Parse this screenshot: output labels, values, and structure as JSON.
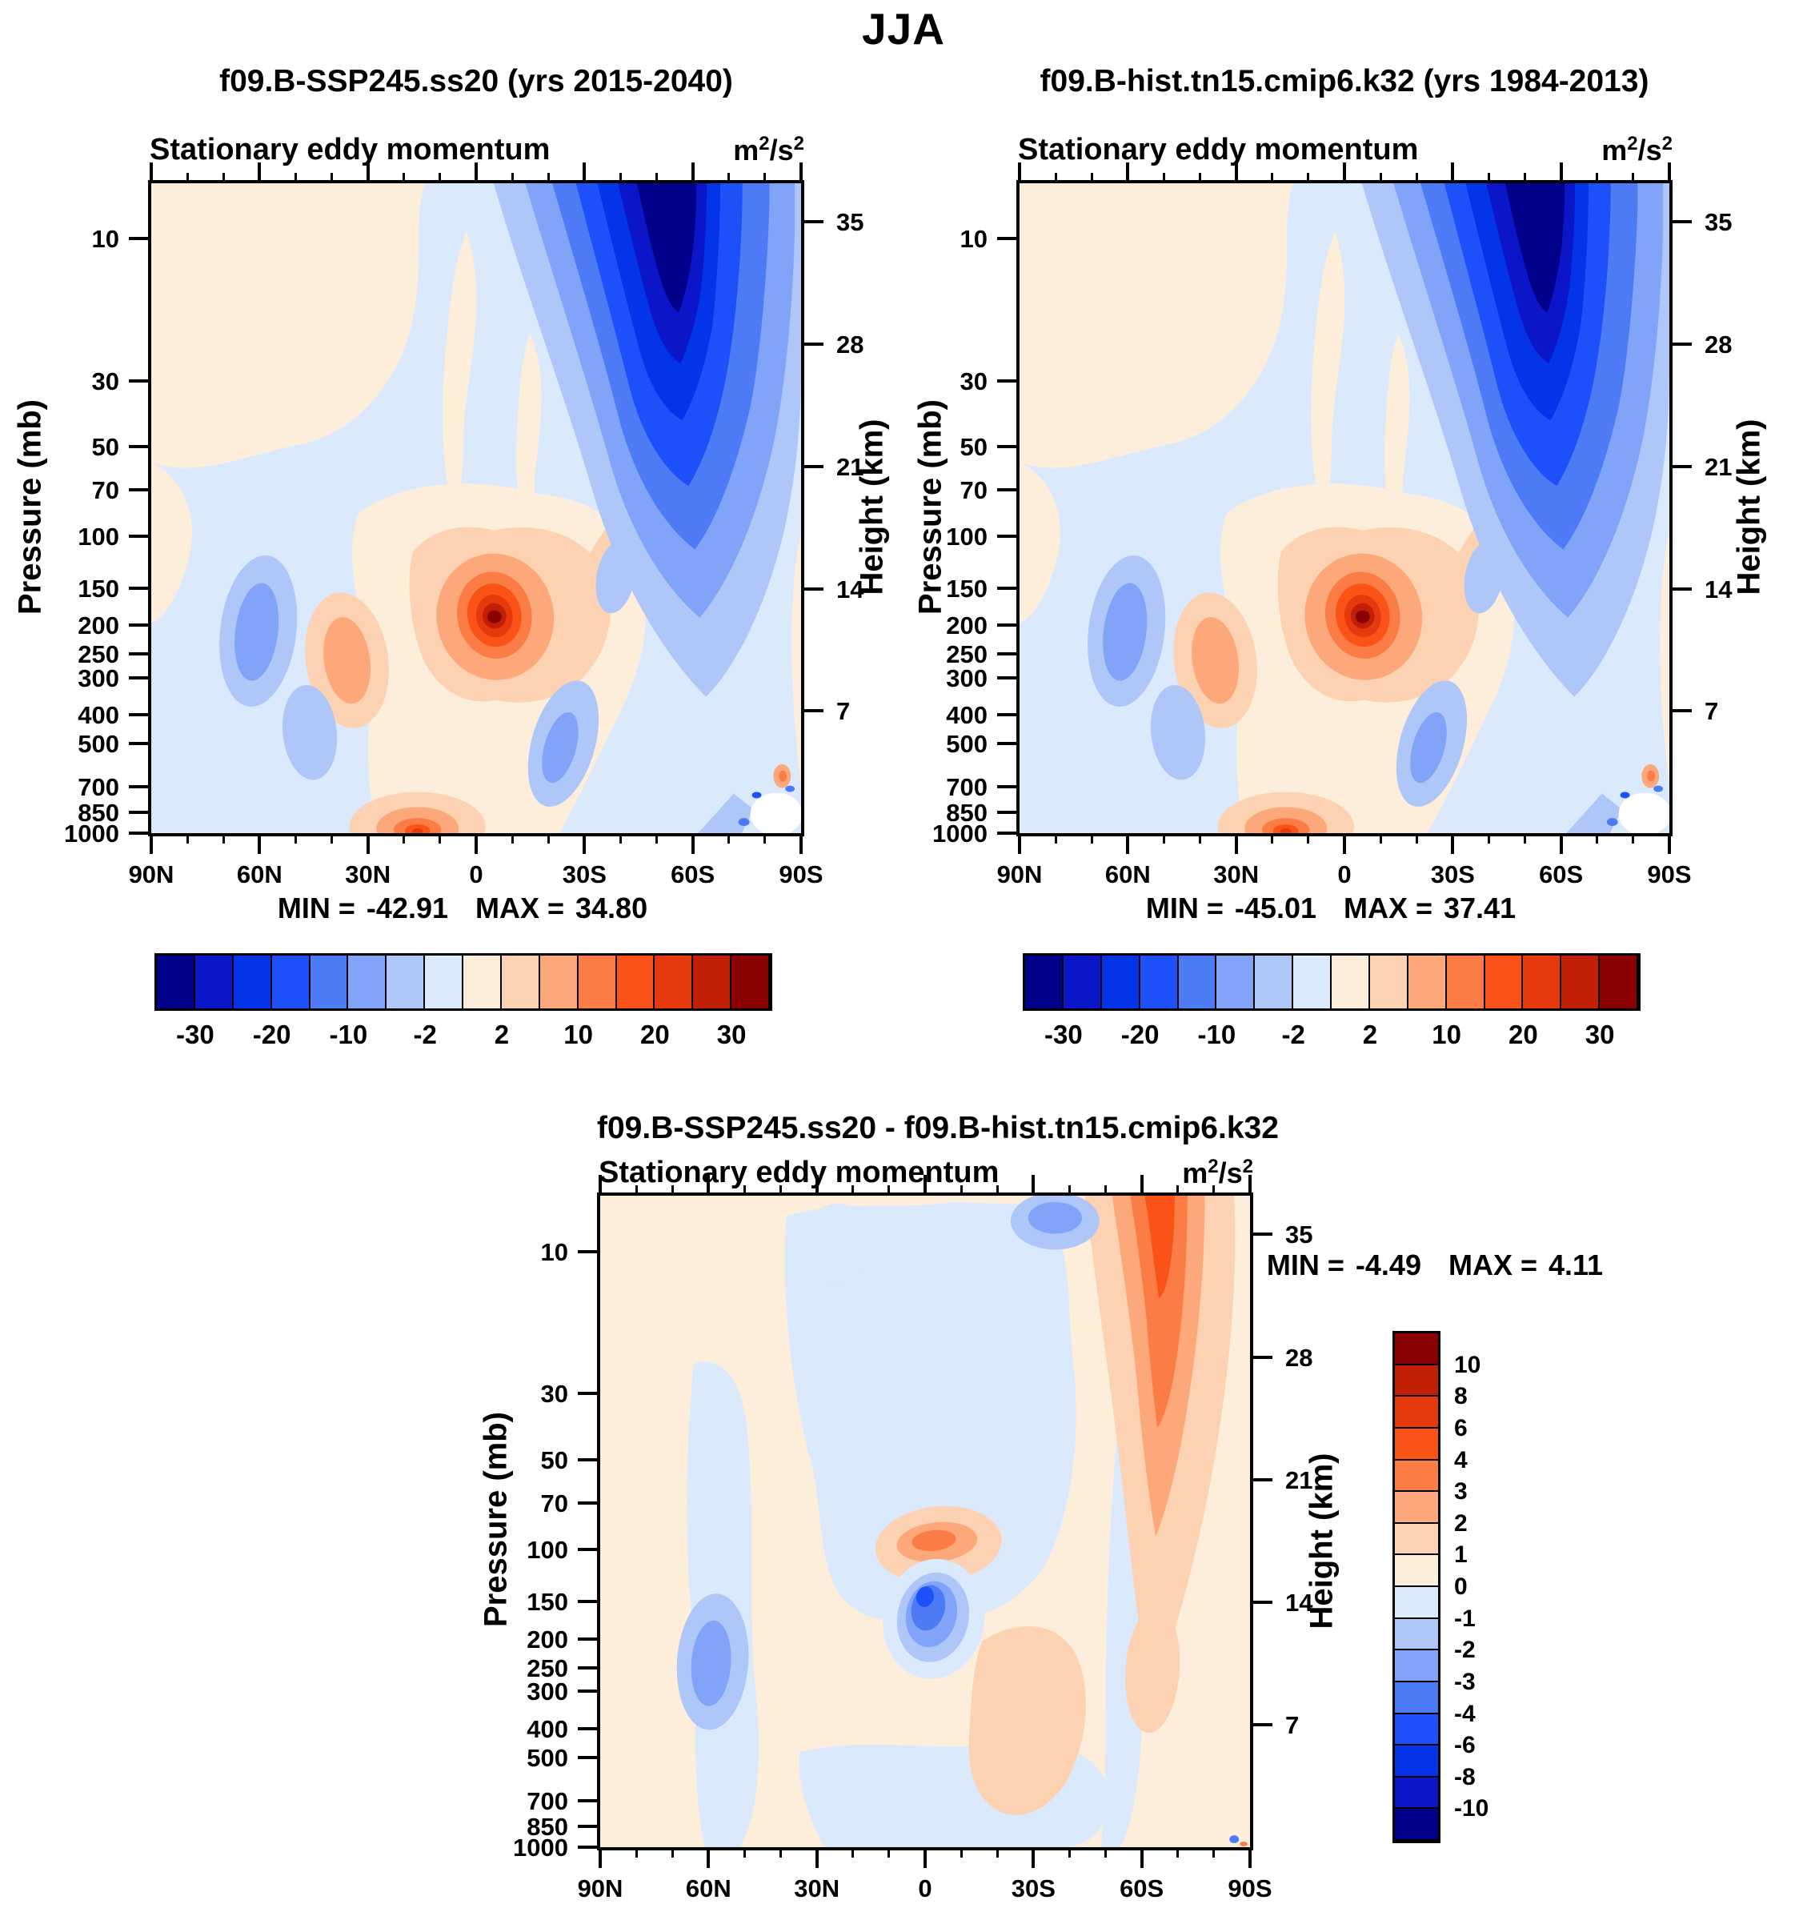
{
  "figure_title": "JJA",
  "shared": {
    "subtitle": "Stationary eddy momentum",
    "units": {
      "b1": "m",
      "e1": "2",
      "b2": "/s",
      "e2": "2"
    },
    "axis": {
      "pressure_label": "Pressure (mb)",
      "height_label": "Height (km)",
      "pressure_ticks": [
        10,
        30,
        50,
        70,
        100,
        150,
        200,
        250,
        300,
        400,
        500,
        700,
        850,
        1000
      ],
      "height_ticks": [
        35,
        28,
        21,
        14,
        7
      ],
      "lat_ticks": [
        "90N",
        "60N",
        "30N",
        "0",
        "30S",
        "60S",
        "90S"
      ],
      "lat_minor_every_deg": 10
    },
    "stats_labels": {
      "min": "MIN =",
      "max": "MAX ="
    },
    "palette_blue_to_red": [
      "#00008b",
      "#0b16c9",
      "#0334e8",
      "#1e50fa",
      "#4d7bf5",
      "#82a4f8",
      "#afc6f9",
      "#dbe9fc",
      "#fdeedc",
      "#fdd2b2",
      "#fca87a",
      "#fb7c44",
      "#fb5317",
      "#e63a0e",
      "#c11f06",
      "#8b0000"
    ]
  },
  "panels": {
    "left": {
      "title": "f09.B-SSP245.ss20 (yrs 2015-2040)",
      "min": "-42.91",
      "max": "34.80",
      "colorbar_labels": [
        "-30",
        "-20",
        "-10",
        "-2",
        "2",
        "10",
        "20",
        "30"
      ]
    },
    "right": {
      "title": "f09.B-hist.tn15.cmip6.k32 (yrs 1984-2013)",
      "min": "-45.01",
      "max": "37.41",
      "colorbar_labels": [
        "-30",
        "-20",
        "-10",
        "-2",
        "2",
        "10",
        "20",
        "30"
      ]
    },
    "diff": {
      "title": "f09.B-SSP245.ss20 - f09.B-hist.tn15.cmip6.k32",
      "min": "-4.49",
      "max": "4.11",
      "colorbar_labels": [
        "10",
        "8",
        "6",
        "4",
        "3",
        "2",
        "1",
        "0",
        "-1",
        "-2",
        "-3",
        "-4",
        "-6",
        "-8",
        "-10"
      ]
    }
  },
  "chart_data": [
    {
      "type": "heatmap",
      "style": "filled-contour latitude-pressure cross-section",
      "title": "f09.B-SSP245.ss20 (yrs 2015-2040)",
      "subtitle": "Stationary eddy momentum",
      "units": "m2/s2",
      "season": "JJA",
      "x_axis": {
        "ticks": [
          "90N",
          "60N",
          "30N",
          "0",
          "30S",
          "60S",
          "90S"
        ],
        "minor_tick_interval_deg": 10
      },
      "y_axis_left": {
        "label": "Pressure (mb)",
        "scale": "log",
        "ticks": [
          10,
          30,
          50,
          70,
          100,
          150,
          200,
          250,
          300,
          400,
          500,
          700,
          850,
          1000
        ]
      },
      "y_axis_right": {
        "label": "Height (km)",
        "ticks": [
          35,
          28,
          21,
          14,
          7
        ]
      },
      "min": -42.91,
      "max": 34.8,
      "colorbar": {
        "orientation": "horizontal",
        "n_cells": 16,
        "labeled_levels": [
          -30,
          -20,
          -10,
          -2,
          2,
          10,
          20,
          30
        ]
      },
      "features": [
        {
          "desc": "strong negative center, deep-blue funnel from top of plot",
          "lat": "50S-65S",
          "pressure_mb": "7-30",
          "approx_value": "-30 to -42.9"
        },
        {
          "desc": "strong positive oval (dark red core)",
          "lat": "~5S",
          "pressure_mb": "150-200",
          "approx_value": "+30 to +34.8"
        },
        {
          "desc": "secondary positive patch",
          "lat": "~35N",
          "pressure_mb": "200-300",
          "approx_value": "+6 to +10"
        },
        {
          "desc": "near-surface positive spot",
          "lat": "~12N",
          "pressure_mb": "850-1000",
          "approx_value": "+10 to +20"
        },
        {
          "desc": "weak negative bands",
          "lat": "~40N and 20-30S",
          "pressure_mb": "150-700",
          "approx_value": "-2 to -6"
        },
        {
          "desc": "weak positive (cream) region",
          "lat": "90N-30N",
          "pressure_mb": "7-30",
          "approx_value": "0 to +2"
        }
      ]
    },
    {
      "type": "heatmap",
      "style": "filled-contour latitude-pressure cross-section",
      "title": "f09.B-hist.tn15.cmip6.k32 (yrs 1984-2013)",
      "subtitle": "Stationary eddy momentum",
      "units": "m2/s2",
      "season": "JJA",
      "x_axis": {
        "ticks": [
          "90N",
          "60N",
          "30N",
          "0",
          "30S",
          "60S",
          "90S"
        ],
        "minor_tick_interval_deg": 10
      },
      "y_axis_left": {
        "label": "Pressure (mb)",
        "scale": "log",
        "ticks": [
          10,
          30,
          50,
          70,
          100,
          150,
          200,
          250,
          300,
          400,
          500,
          700,
          850,
          1000
        ]
      },
      "y_axis_right": {
        "label": "Height (km)",
        "ticks": [
          35,
          28,
          21,
          14,
          7
        ]
      },
      "min": -45.01,
      "max": 37.41,
      "colorbar": {
        "orientation": "horizontal",
        "n_cells": 16,
        "labeled_levels": [
          -30,
          -20,
          -10,
          -2,
          2,
          10,
          20,
          30
        ]
      },
      "features": [
        {
          "desc": "strong negative center, deep-blue funnel from top of plot",
          "lat": "50S-65S",
          "pressure_mb": "7-30",
          "approx_value": "-30 to -45.0"
        },
        {
          "desc": "strong positive oval (dark red core)",
          "lat": "~5S",
          "pressure_mb": "150-200",
          "approx_value": "+30 to +37.4"
        },
        {
          "desc": "secondary positive patch",
          "lat": "~35N",
          "pressure_mb": "200-300",
          "approx_value": "+6 to +10"
        },
        {
          "desc": "near-surface positive spot",
          "lat": "~12N",
          "pressure_mb": "850-1000",
          "approx_value": "+10 to +20"
        },
        {
          "desc": "weak negative bands",
          "lat": "~40N and 20-30S",
          "pressure_mb": "150-700",
          "approx_value": "-2 to -6"
        },
        {
          "desc": "weak positive (cream) region",
          "lat": "90N-30N",
          "pressure_mb": "7-30",
          "approx_value": "0 to +2"
        }
      ]
    },
    {
      "type": "heatmap",
      "style": "filled-contour difference plot",
      "title": "f09.B-SSP245.ss20 - f09.B-hist.tn15.cmip6.k32",
      "subtitle": "Stationary eddy momentum",
      "units": "m2/s2",
      "season": "JJA",
      "x_axis": {
        "ticks": [
          "90N",
          "60N",
          "30N",
          "0",
          "30S",
          "60S",
          "90S"
        ],
        "minor_tick_interval_deg": 10
      },
      "y_axis_left": {
        "label": "Pressure (mb)",
        "scale": "log",
        "ticks": [
          10,
          30,
          50,
          70,
          100,
          150,
          200,
          250,
          300,
          400,
          500,
          700,
          850,
          1000
        ]
      },
      "y_axis_right": {
        "label": "Height (km)",
        "ticks": [
          35,
          28,
          21,
          14,
          7
        ]
      },
      "min": -4.49,
      "max": 4.11,
      "colorbar": {
        "orientation": "vertical",
        "n_cells": 16,
        "labeled_levels": [
          10,
          8,
          6,
          4,
          3,
          2,
          1,
          0,
          -1,
          -2,
          -3,
          -4,
          -6,
          -8,
          -10
        ]
      },
      "features": [
        {
          "desc": "positive difference streak (orange)",
          "lat": "55S-65S",
          "pressure_mb": "7-30",
          "approx_value": "+2 to +4.1"
        },
        {
          "desc": "negative difference center (blue oval)",
          "lat": "0-5S",
          "pressure_mb": "150-200",
          "approx_value": "-3 to -4.5"
        },
        {
          "desc": "small positive spot above the blue oval",
          "lat": "~0",
          "pressure_mb": "~100",
          "approx_value": "+2 to +3"
        },
        {
          "desc": "weak negative patch",
          "lat": "~60N",
          "pressure_mb": "300-500",
          "approx_value": "-1 to -2"
        },
        {
          "desc": "weak mottled background",
          "lat": "global",
          "pressure_mb": "all",
          "approx_value": "-1 to +1"
        }
      ]
    }
  ]
}
